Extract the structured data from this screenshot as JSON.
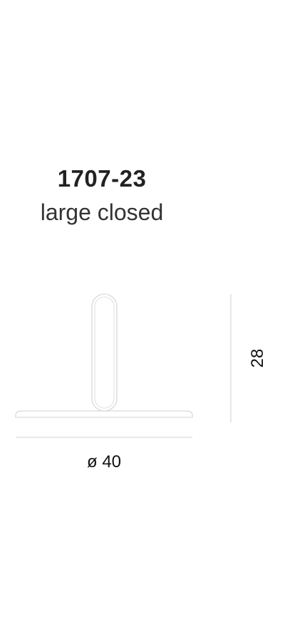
{
  "product": {
    "code": "1707-23",
    "variant": "large closed"
  },
  "dimensions": {
    "width_label": "ø 40",
    "height_label": "28"
  },
  "colors": {
    "outline": "#d9d9d9",
    "text": "#222222"
  }
}
